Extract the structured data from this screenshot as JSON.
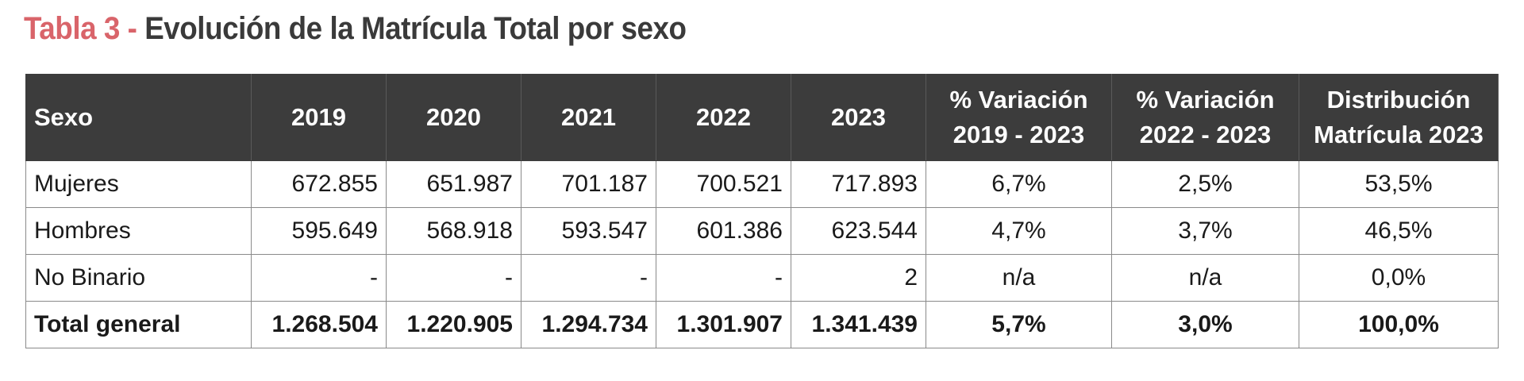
{
  "title": {
    "prefix": "Tabla 3 - ",
    "text": "Evolución de la Matrícula Total por sexo"
  },
  "table": {
    "headers": [
      {
        "lines": [
          "Sexo"
        ]
      },
      {
        "lines": [
          "2019"
        ]
      },
      {
        "lines": [
          "2020"
        ]
      },
      {
        "lines": [
          "2021"
        ]
      },
      {
        "lines": [
          "2022"
        ]
      },
      {
        "lines": [
          "2023"
        ]
      },
      {
        "lines": [
          "% Variación",
          "2019 - 2023"
        ]
      },
      {
        "lines": [
          "% Variación",
          "2022 - 2023"
        ]
      },
      {
        "lines": [
          "Distribución",
          "Matrícula 2023"
        ]
      }
    ],
    "rows": [
      {
        "cells": [
          "Mujeres",
          "672.855",
          "651.987",
          "701.187",
          "700.521",
          "717.893",
          "6,7%",
          "2,5%",
          "53,5%"
        ]
      },
      {
        "cells": [
          "Hombres",
          "595.649",
          "568.918",
          "593.547",
          "601.386",
          "623.544",
          "4,7%",
          "3,7%",
          "46,5%"
        ]
      },
      {
        "cells": [
          "No Binario",
          "-",
          "-",
          "-",
          "-",
          "2",
          "n/a",
          "n/a",
          "0,0%"
        ]
      },
      {
        "cells": [
          "Total general",
          "1.268.504",
          "1.220.905",
          "1.294.734",
          "1.301.907",
          "1.341.439",
          "5,7%",
          "3,0%",
          "100,0%"
        ]
      }
    ]
  },
  "colors": {
    "title_prefix": "#d9646a",
    "title_text": "#3a3a3a",
    "header_bg": "#3c3c3c",
    "header_text": "#ffffff",
    "border": "#8a8a8a"
  }
}
